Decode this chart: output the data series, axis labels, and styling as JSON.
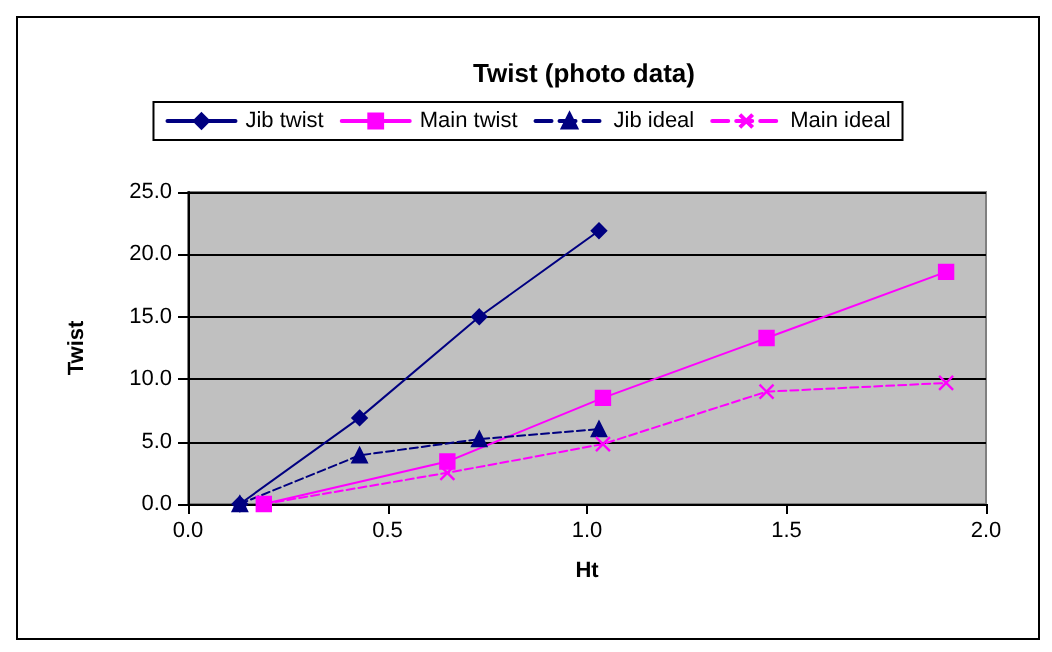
{
  "chart_data": {
    "type": "line",
    "title": "Twist (photo data)",
    "xlabel": "Ht",
    "ylabel": "Twist",
    "series": [
      {
        "name": "Jib twist",
        "color": "#000080",
        "marker": "diamond",
        "line_style": "solid",
        "x": [
          0.13,
          0.43,
          0.73,
          1.03
        ],
        "values": [
          0,
          6.9,
          15.0,
          21.9
        ]
      },
      {
        "name": "Main twist",
        "color": "#ff00ff",
        "marker": "square",
        "line_style": "solid",
        "x": [
          0.19,
          0.65,
          1.04,
          1.45,
          1.9
        ],
        "values": [
          0,
          3.4,
          8.5,
          13.3,
          18.6
        ]
      },
      {
        "name": "Jib ideal",
        "color": "#000080",
        "marker": "triangle",
        "line_style": "dashed",
        "x": [
          0.13,
          0.43,
          0.73,
          1.03
        ],
        "values": [
          0,
          3.9,
          5.2,
          6.0
        ]
      },
      {
        "name": "Main ideal",
        "color": "#ff00ff",
        "marker": "cross",
        "line_style": "dashed",
        "x": [
          0.19,
          0.65,
          1.04,
          1.45,
          1.9
        ],
        "values": [
          0,
          2.5,
          4.8,
          9.0,
          9.7
        ]
      }
    ],
    "xlim": [
      0,
      2
    ],
    "xticks": [
      {
        "value": 0,
        "label": "0.0"
      },
      {
        "value": 0.5,
        "label": "0.5"
      },
      {
        "value": 1,
        "label": "1.0"
      },
      {
        "value": 1.5,
        "label": "1.5"
      },
      {
        "value": 2,
        "label": "2.0"
      }
    ],
    "ylim": [
      0,
      25
    ],
    "yticks": [
      {
        "value": 0,
        "label": "0.0"
      },
      {
        "value": 5,
        "label": "5.0"
      },
      {
        "value": 10,
        "label": "10.0"
      },
      {
        "value": 15,
        "label": "15.0"
      },
      {
        "value": 20,
        "label": "20.0"
      },
      {
        "value": 25,
        "label": "25.0"
      }
    ],
    "grid": "y",
    "legend": "top"
  }
}
